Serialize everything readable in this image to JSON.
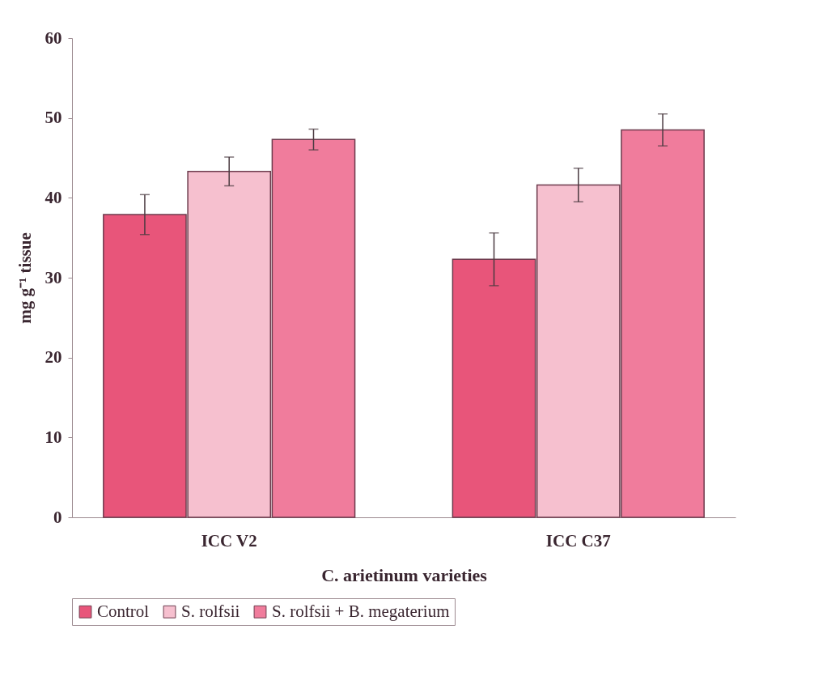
{
  "chart_data": {
    "type": "bar",
    "xlabel": "C. arietinum varieties",
    "ylabel": "mg g⁻¹ tissue",
    "categories": [
      "ICC V2",
      "ICC C37"
    ],
    "series": [
      {
        "name": "Control",
        "color": "#e8557a",
        "values": [
          37.9,
          32.3
        ],
        "errors": [
          2.5,
          3.3
        ]
      },
      {
        "name": "S. rolfsii",
        "color": "#f6c0cf",
        "values": [
          43.3,
          41.6
        ],
        "errors": [
          1.8,
          2.1
        ]
      },
      {
        "name": "S. rolfsii + B. megaterium",
        "color": "#f07c9c",
        "values": [
          47.3,
          48.5
        ],
        "errors": [
          1.3,
          2.0
        ]
      }
    ],
    "ylim": [
      0,
      60
    ],
    "yticks": [
      0,
      10,
      20,
      30,
      40,
      50,
      60
    ],
    "grid": false,
    "legend": "bottom"
  }
}
